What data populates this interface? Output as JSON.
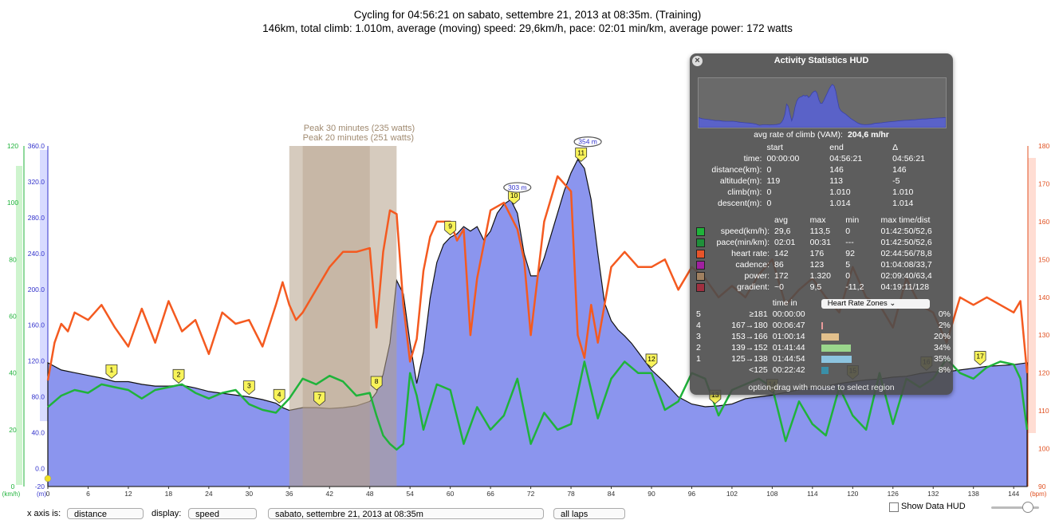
{
  "title": {
    "line1": "Cycling for 04:56:21 on sabato, settembre 21, 2013 at 08:35m. (Training)",
    "line2": "146km, total climb: 1.010m, average (moving) speed: 29,6km/h, pace: 02:01 min/km, average power: 172 watts"
  },
  "colors": {
    "altitude_fill": "#8b95ee",
    "speed": "#1fb33a",
    "heart_rate": "#f45a20",
    "peak_region": "#b5a089"
  },
  "chart_data": {
    "type": "line",
    "x_unit": "km",
    "xlim": [
      0,
      146
    ],
    "x_ticks": [
      "0",
      "6",
      "12",
      "18",
      "24",
      "30",
      "36",
      "42",
      "48",
      "54",
      "60",
      "66",
      "72",
      "78",
      "84",
      "90",
      "96",
      "102",
      "108",
      "114",
      "120",
      "126",
      "132",
      "138",
      "144"
    ],
    "axes": {
      "speed": {
        "label": "(km/h)",
        "ticks": [
          "120",
          "100",
          "80",
          "60",
          "40",
          "20",
          "0"
        ],
        "ylim": [
          0,
          120
        ]
      },
      "altitude": {
        "label": "(m)",
        "ticks": [
          "360.0",
          "320.0",
          "280.0",
          "240.0",
          "200.0",
          "160.0",
          "120.0",
          "80.0",
          "40.0",
          "0.0",
          "-20"
        ],
        "ylim": [
          -20,
          360
        ]
      },
      "heart_rate": {
        "label": "(bpm)",
        "ticks": [
          "180",
          "170",
          "160",
          "150",
          "140",
          "130",
          "120",
          "110",
          "100",
          "90"
        ],
        "ylim": [
          90,
          180
        ]
      }
    },
    "series": [
      {
        "name": "altitude",
        "axis": "altitude",
        "x": [
          0,
          2,
          4,
          6,
          8,
          10,
          12,
          14,
          16,
          18,
          20,
          22,
          24,
          26,
          28,
          30,
          32,
          34,
          35,
          36,
          38,
          40,
          42,
          44,
          46,
          48,
          49,
          50,
          51,
          52,
          53,
          54,
          55,
          56,
          57,
          58,
          59,
          60,
          61,
          62,
          63,
          64,
          65,
          66,
          67,
          68,
          69,
          70,
          71,
          72,
          73,
          74,
          75,
          76,
          77,
          78,
          79,
          80,
          81,
          82,
          83,
          84,
          85,
          86,
          87,
          88,
          89,
          90,
          92,
          94,
          96,
          98,
          100,
          102,
          104,
          106,
          108,
          110,
          112,
          114,
          116,
          118,
          120,
          122,
          124,
          126,
          128,
          130,
          132,
          134,
          136,
          138,
          140,
          142,
          144,
          146
        ],
        "y": [
          118,
          110,
          107,
          104,
          101,
          97,
          97,
          94,
          92,
          92,
          93,
          90,
          86,
          84,
          82,
          80,
          77,
          73,
          68,
          65,
          68,
          68,
          67,
          68,
          70,
          75,
          85,
          105,
          140,
          210,
          195,
          140,
          95,
          130,
          190,
          230,
          250,
          258,
          262,
          270,
          265,
          270,
          255,
          265,
          285,
          295,
          300,
          285,
          240,
          215,
          215,
          235,
          260,
          285,
          310,
          330,
          345,
          335,
          300,
          240,
          185,
          165,
          155,
          148,
          140,
          130,
          120,
          110,
          96,
          80,
          72,
          69,
          70,
          72,
          78,
          80,
          82,
          85,
          88,
          90,
          92,
          95,
          97,
          99,
          100,
          102,
          103,
          106,
          108,
          108,
          110,
          112,
          114,
          115,
          116,
          118
        ]
      },
      {
        "name": "speed",
        "axis": "speed",
        "x": [
          0,
          2,
          4,
          6,
          8,
          10,
          12,
          14,
          16,
          18,
          20,
          22,
          24,
          26,
          28,
          30,
          32,
          34,
          36,
          38,
          40,
          42,
          44,
          46,
          48,
          49,
          50,
          51,
          52,
          53,
          54,
          55,
          56,
          58,
          60,
          62,
          64,
          66,
          68,
          70,
          72,
          74,
          76,
          78,
          80,
          82,
          84,
          86,
          88,
          90,
          92,
          94,
          96,
          98,
          100,
          102,
          104,
          106,
          108,
          110,
          112,
          114,
          116,
          118,
          120,
          122,
          124,
          126,
          128,
          130,
          132,
          134,
          136,
          138,
          140,
          142,
          144,
          145,
          146
        ],
        "y": [
          28,
          32,
          34,
          33,
          36,
          35,
          34,
          31,
          34,
          35,
          36,
          33,
          31,
          33,
          34,
          29,
          27,
          26,
          31,
          38,
          36,
          39,
          37,
          32,
          33,
          25,
          18,
          15,
          13,
          15,
          40,
          32,
          20,
          36,
          34,
          15,
          28,
          20,
          25,
          38,
          15,
          26,
          20,
          22,
          44,
          24,
          38,
          44,
          40,
          40,
          27,
          30,
          40,
          38,
          25,
          34,
          36,
          38,
          35,
          16,
          30,
          22,
          18,
          35,
          25,
          20,
          40,
          22,
          38,
          35,
          38,
          45,
          40,
          38,
          42,
          44,
          43,
          38,
          20
        ]
      },
      {
        "name": "heart_rate",
        "axis": "heart_rate",
        "x": [
          0,
          1,
          2,
          3,
          4,
          6,
          8,
          10,
          12,
          14,
          16,
          18,
          20,
          22,
          24,
          26,
          28,
          30,
          32,
          34,
          35,
          36,
          37,
          38,
          40,
          42,
          44,
          46,
          48,
          49,
          50,
          51,
          52,
          53,
          54,
          55,
          56,
          57,
          58,
          60,
          61,
          62,
          63,
          64,
          66,
          68,
          70,
          71,
          72,
          73,
          74,
          76,
          78,
          79,
          80,
          81,
          82,
          84,
          86,
          88,
          90,
          92,
          94,
          96,
          98,
          100,
          102,
          104,
          106,
          108,
          110,
          112,
          114,
          116,
          118,
          120,
          122,
          124,
          126,
          128,
          130,
          132,
          134,
          136,
          138,
          140,
          142,
          144,
          145,
          146
        ],
        "y": [
          118,
          128,
          133,
          131,
          136,
          134,
          138,
          132,
          127,
          137,
          128,
          139,
          131,
          134,
          125,
          136,
          133,
          134,
          127,
          138,
          144,
          138,
          134,
          136,
          142,
          148,
          152,
          152,
          153,
          132,
          152,
          163,
          162,
          138,
          123,
          129,
          147,
          156,
          160,
          160,
          155,
          158,
          130,
          145,
          163,
          165,
          158,
          150,
          130,
          145,
          160,
          172,
          168,
          130,
          124,
          138,
          128,
          148,
          152,
          148,
          148,
          150,
          142,
          148,
          145,
          140,
          143,
          140,
          146,
          150,
          138,
          142,
          145,
          140,
          136,
          148,
          140,
          138,
          132,
          145,
          138,
          136,
          128,
          140,
          138,
          140,
          138,
          136,
          139,
          120
        ]
      }
    ],
    "annotations": {
      "peaks": [
        {
          "label": "Peak 30 minutes (235 watts)",
          "x_start": 36,
          "x_end": 52
        },
        {
          "label": "Peak 20 minutes (251 watts)",
          "x_start": 38,
          "x_end": 48
        }
      ],
      "altitude_callouts": [
        {
          "label": "303 m",
          "x": 70,
          "y": 303
        },
        {
          "label": "354 m",
          "x": 80.5,
          "y": 354
        }
      ],
      "laps": [
        {
          "n": "1",
          "x": 9.5
        },
        {
          "n": "2",
          "x": 19.5
        },
        {
          "n": "3",
          "x": 30
        },
        {
          "n": "4",
          "x": 34.5
        },
        {
          "n": "7",
          "x": 40.5
        },
        {
          "n": "8",
          "x": 49
        },
        {
          "n": "9",
          "x": 60
        },
        {
          "n": "10",
          "x": 69.5
        },
        {
          "n": "11",
          "x": 79.5
        },
        {
          "n": "12",
          "x": 90
        },
        {
          "n": "13",
          "x": 99.5
        },
        {
          "n": "14",
          "x": 108
        },
        {
          "n": "15",
          "x": 120
        },
        {
          "n": "16",
          "x": 131
        },
        {
          "n": "17",
          "x": 139
        }
      ]
    }
  },
  "hud": {
    "title": "Activity Statistics HUD",
    "vam_label": "avg rate of climb (VAM):",
    "vam_value": "204,6 m/hr",
    "range_headers": [
      "",
      "start",
      "end",
      "Δ"
    ],
    "range_rows": [
      [
        "time:",
        "00:00:00",
        "04:56:21",
        "04:56:21"
      ],
      [
        "distance(km):",
        "0",
        "146",
        "146"
      ],
      [
        "altitude(m):",
        "119",
        "113",
        "-5"
      ],
      [
        "climb(m):",
        "0",
        "1.010",
        "1.010"
      ],
      [
        "descent(m):",
        "0",
        "1.014",
        "1.014"
      ]
    ],
    "stat_headers": [
      "",
      "",
      "avg",
      "max",
      "min",
      "max time/dist"
    ],
    "stat_rows": [
      {
        "color": "#1fb33a",
        "label": "speed(km/h):",
        "avg": "29,6",
        "max": "113,5",
        "min": "0",
        "maxat": "01:42:50/52,6"
      },
      {
        "color": "#1f8f3a",
        "label": "pace(min/km):",
        "avg": "02:01",
        "max": "00:31",
        "min": "---",
        "maxat": "01:42:50/52,6"
      },
      {
        "color": "#e8542a",
        "label": "heart rate:",
        "avg": "142",
        "max": "176",
        "min": "92",
        "maxat": "02:44:56/78,8"
      },
      {
        "color": "#a020a0",
        "label": "cadence:",
        "avg": "86",
        "max": "123",
        "min": "5",
        "maxat": "01:04:08/33,7"
      },
      {
        "color": "#a08060",
        "label": "power:",
        "avg": "172",
        "max": "1.320",
        "min": "0",
        "maxat": "02:09:40/63,4"
      },
      {
        "color": "#a03040",
        "label": "gradient:",
        "avg": "~0",
        "max": "9,5",
        "min": "-11,2",
        "maxat": "04:19:11/128"
      }
    ],
    "zones_time_header": "time in",
    "zones_select": "Heart Rate Zones",
    "zones": [
      {
        "n": "5",
        "range": "≥181",
        "time": "00:00:00",
        "pct": "0%",
        "frac": 0.0,
        "color": "#e06a6a"
      },
      {
        "n": "4",
        "range": "167→180",
        "time": "00:06:47",
        "pct": "2%",
        "frac": 0.02,
        "color": "#e89a9a"
      },
      {
        "n": "3",
        "range": "153→166",
        "time": "01:00:14",
        "pct": "20%",
        "frac": 0.2,
        "color": "#e2c08c"
      },
      {
        "n": "2",
        "range": "139→152",
        "time": "01:41:44",
        "pct": "34%",
        "frac": 0.34,
        "color": "#9ad68c"
      },
      {
        "n": "1",
        "range": "125→138",
        "time": "01:44:54",
        "pct": "35%",
        "frac": 0.35,
        "color": "#8cc4e0"
      },
      {
        "n": "",
        "range": "<125",
        "time": "00:22:42",
        "pct": "8%",
        "frac": 0.08,
        "color": "#3a8fa8"
      }
    ],
    "hint": "option-drag with mouse to select region"
  },
  "controls": {
    "xaxis_label": "x axis is:",
    "xaxis_value": "distance",
    "display_label": "display:",
    "display_value": "speed",
    "activity_value": "sabato, settembre 21, 2013 at 08:35m",
    "laps_value": "all laps",
    "show_hud_label": "Show Data HUD"
  }
}
